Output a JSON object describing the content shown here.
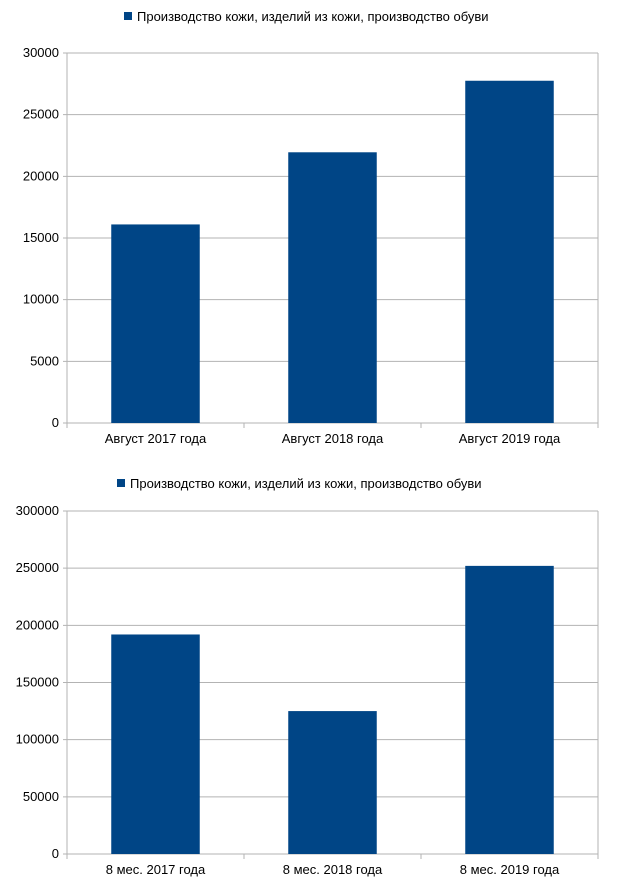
{
  "chart_data": [
    {
      "type": "bar",
      "legend": "Производство кожи, изделий из кожи, производство обуви",
      "categories": [
        "Август 2017 года",
        "Август 2018 года",
        "Август 2019 года"
      ],
      "series": [
        {
          "name": "Производство кожи, изделий из кожи, производство обуви",
          "values": [
            16100,
            21950,
            27750
          ]
        }
      ],
      "ylim": [
        0,
        30000
      ],
      "yticks": [
        0,
        5000,
        10000,
        15000,
        20000,
        25000,
        30000
      ],
      "grid": true,
      "legend_position": "top",
      "color": "#004586"
    },
    {
      "type": "bar",
      "legend": "Производство кожи, изделий из кожи, производство обуви",
      "categories": [
        "8 мес. 2017 года",
        "8 мес. 2018 года",
        "8 мес. 2019 года"
      ],
      "series": [
        {
          "name": "Производство кожи, изделий из кожи, производство обуви",
          "values": [
            192000,
            125000,
            252000
          ]
        }
      ],
      "ylim": [
        0,
        300000
      ],
      "yticks": [
        0,
        50000,
        100000,
        150000,
        200000,
        250000,
        300000
      ],
      "grid": true,
      "legend_position": "top",
      "color": "#004586"
    }
  ]
}
